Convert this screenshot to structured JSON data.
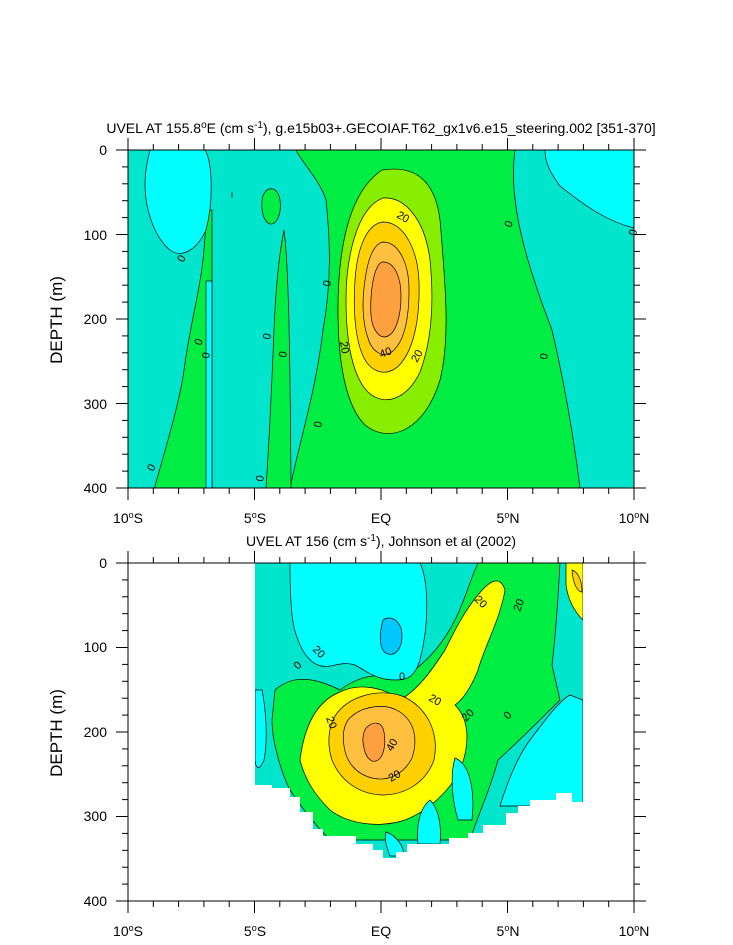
{
  "chart_data": [
    {
      "type": "contour",
      "title": "UVEL AT 155.8°E (cm s⁻¹), g.e15b03+.GECOIAF.T62_gx1v6.e15_steering.002 [351-370]",
      "title_parts": {
        "pre": "UVEL AT 155.8",
        "deg": "o",
        "mid": "E (cm s",
        "sup": "-1",
        "post": "), g.e15b03+.GECOIAF.T62_gx1v6.e15_steering.002 [351-370]"
      },
      "ylabel": "DEPTH (m)",
      "xlim": [
        -10,
        10
      ],
      "ylim": [
        0,
        400
      ],
      "y_reversed": true,
      "x_ticks": [
        {
          "value": -10,
          "num": "10",
          "deg": "o",
          "hem": "S"
        },
        {
          "value": -5,
          "num": "5",
          "deg": "o",
          "hem": "S"
        },
        {
          "value": 0,
          "num": "EQ",
          "deg": "",
          "hem": ""
        },
        {
          "value": 5,
          "num": "5",
          "deg": "o",
          "hem": "N"
        },
        {
          "value": 10,
          "num": "10",
          "deg": "o",
          "hem": "N"
        }
      ],
      "y_ticks": [
        "0",
        "100",
        "200",
        "300",
        "400"
      ],
      "contour_labels": [
        "0",
        "0",
        "0",
        "0",
        "0",
        "0",
        "0",
        "0",
        "0",
        "0",
        "0",
        "0",
        "20",
        "20",
        "20",
        "40"
      ],
      "fill_colors": [
        "#00ffff",
        "#00e5cc",
        "#00ee44",
        "#88ee00",
        "#ffff00",
        "#ffd000",
        "#ffa040"
      ]
    },
    {
      "type": "contour",
      "title": "UVEL AT 156 (cm s⁻¹), Johnson et al (2002)",
      "title_parts": {
        "pre": "UVEL AT 156",
        "deg": "",
        "mid": " (cm s",
        "sup": "-1",
        "post": "), Johnson et al (2002)"
      },
      "ylabel": "DEPTH (m)",
      "xlim": [
        -10,
        10
      ],
      "ylim": [
        0,
        400
      ],
      "y_reversed": true,
      "x_ticks": [
        {
          "value": -10,
          "num": "10",
          "deg": "o",
          "hem": "S"
        },
        {
          "value": -5,
          "num": "5",
          "deg": "o",
          "hem": "S"
        },
        {
          "value": 0,
          "num": "EQ",
          "deg": "",
          "hem": ""
        },
        {
          "value": 5,
          "num": "5",
          "deg": "o",
          "hem": "N"
        },
        {
          "value": 10,
          "num": "10",
          "deg": "o",
          "hem": "N"
        }
      ],
      "y_ticks": [
        "0",
        "100",
        "200",
        "300",
        "400"
      ],
      "contour_labels": [
        "0",
        "0",
        "0",
        "20",
        "20",
        "20",
        "20",
        "20",
        "20",
        "40",
        "20"
      ],
      "fill_colors": [
        "#00ffff",
        "#00e5cc",
        "#00ee44",
        "#88ee00",
        "#ffff00",
        "#ffd000",
        "#ffa040"
      ]
    }
  ]
}
